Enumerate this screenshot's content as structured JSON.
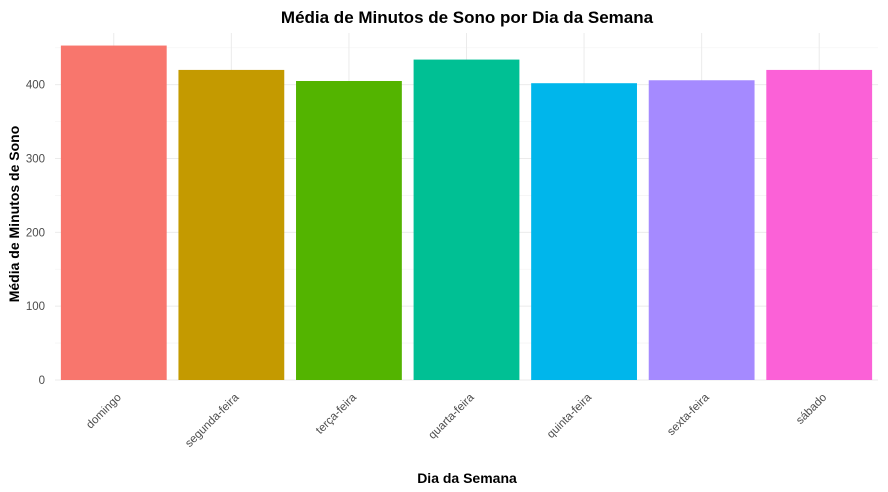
{
  "chart_data": {
    "type": "bar",
    "title": "Média de Minutos de Sono por Dia da Semana",
    "xlabel": "Dia da Semana",
    "ylabel": "Média de Minutos de Sono",
    "categories": [
      "domingo",
      "segunda-feira",
      "terça-feira",
      "quarta-feira",
      "quinta-feira",
      "sexta-feira",
      "sábado"
    ],
    "values": [
      453,
      420,
      405,
      434,
      402,
      406,
      420
    ],
    "colors": [
      "#F8766D",
      "#C49A00",
      "#53B400",
      "#00C094",
      "#00B6EB",
      "#A58AFF",
      "#FB61D7"
    ],
    "yticks": [
      0,
      100,
      200,
      300,
      400
    ],
    "ylim": [
      0,
      470
    ],
    "grid": true,
    "legend": "none"
  }
}
